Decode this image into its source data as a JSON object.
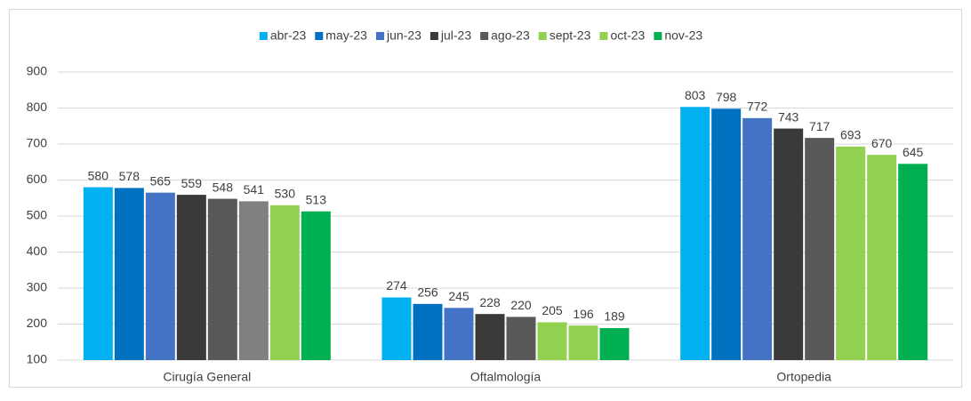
{
  "chart_data": {
    "type": "bar",
    "categories": [
      "Cirugía General",
      "Oftalmología",
      "Ortopedia"
    ],
    "series": [
      {
        "name": "abr-23",
        "color": "#00b0f0",
        "values": [
          580,
          274,
          803
        ]
      },
      {
        "name": "may-23",
        "color": "#0070c0",
        "values": [
          578,
          256,
          798
        ]
      },
      {
        "name": "jun-23",
        "color": "#4472c4",
        "values": [
          565,
          245,
          772
        ]
      },
      {
        "name": "jul-23",
        "color": "#3a3a3a",
        "values": [
          559,
          228,
          743
        ]
      },
      {
        "name": "ago-23",
        "color": "#595959",
        "values": [
          548,
          220,
          717
        ]
      },
      {
        "name": "sept-23",
        "color": "#92d050",
        "point_colors": [
          "#808080",
          "#92d050",
          "#92d050"
        ],
        "values": [
          541,
          205,
          693
        ]
      },
      {
        "name": "oct-23",
        "color": "#92d050",
        "values": [
          530,
          196,
          670
        ]
      },
      {
        "name": "nov-23",
        "color": "#00b050",
        "values": [
          513,
          189,
          645
        ]
      }
    ],
    "ylim": [
      100,
      900
    ],
    "yticks": [
      100,
      200,
      300,
      400,
      500,
      600,
      700,
      800,
      900
    ],
    "grid": true,
    "legend": "top"
  }
}
